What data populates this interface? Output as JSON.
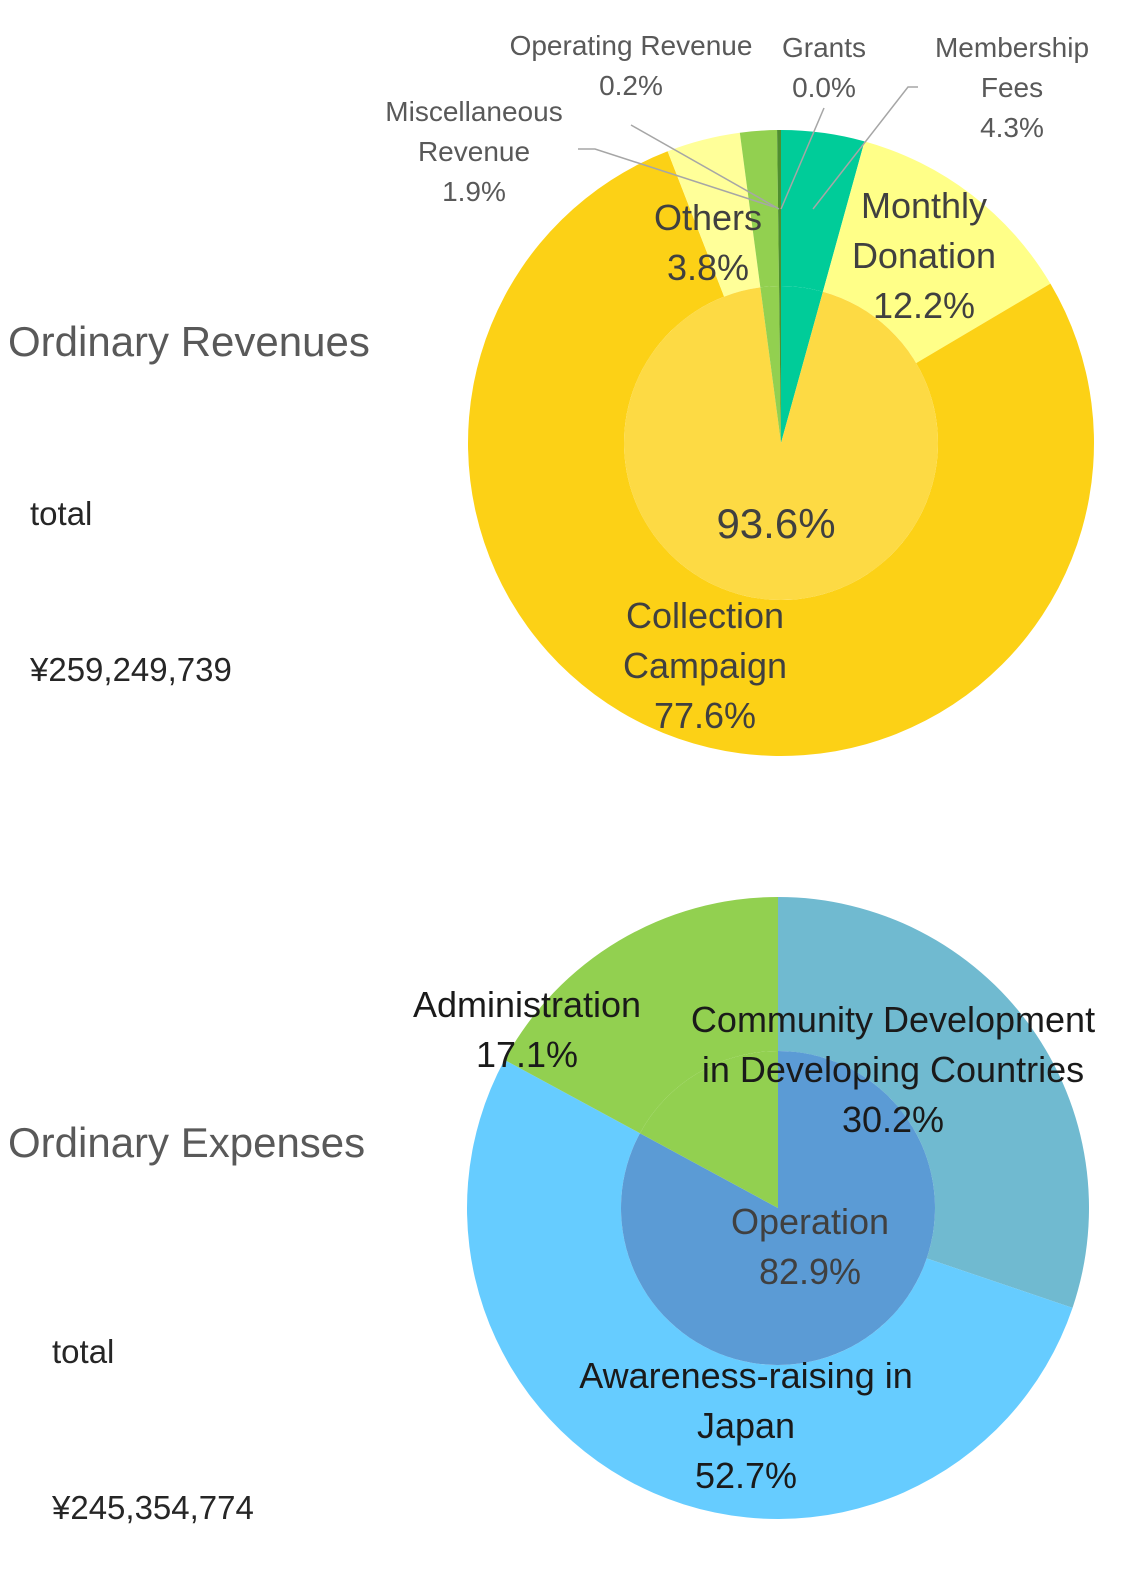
{
  "revenues": {
    "heading": "Ordinary Revenues",
    "total_label": "total",
    "total_value": "¥259,249,739"
  },
  "expenses": {
    "heading": "Ordinary Expenses",
    "total_label": "total",
    "total_value": "¥245,354,774"
  },
  "chart_data": [
    {
      "type": "pie",
      "variant": "donut-with-inner-pie",
      "outer_ring": [
        {
          "label": [
            "Membership",
            "Fees"
          ],
          "pct": "4.3%",
          "value": 4.3,
          "color": "#00CC99"
        },
        {
          "label": [
            "Monthly",
            "Donation"
          ],
          "pct": "12.2%",
          "value": 12.2,
          "color": "#FFFF88"
        },
        {
          "label": [
            "Collection",
            "Campaign"
          ],
          "pct": "77.6%",
          "value": 77.6,
          "color": "#FCD116"
        },
        {
          "label": [
            "Others"
          ],
          "pct": "3.8%",
          "value": 3.8,
          "color": "#FFFF99"
        },
        {
          "label": [
            "Miscellaneous",
            "Revenue"
          ],
          "pct": "1.9%",
          "value": 1.9,
          "color": "#92D050"
        },
        {
          "label": [
            "Operating Revenue"
          ],
          "pct": "0.2%",
          "value": 0.2,
          "color": "#4F8F2F"
        },
        {
          "label": [
            "Grants"
          ],
          "pct": "0.0%",
          "value": 0.0,
          "color": "#2E7D32"
        }
      ],
      "inner_pie": [
        {
          "label": [],
          "pct": "4.3%",
          "value": 4.3,
          "color": "#00CC99"
        },
        {
          "label": [],
          "pct": "93.6%",
          "value": 93.6,
          "color": "#FDDA44"
        },
        {
          "label": [],
          "pct": "1.9%",
          "value": 1.9,
          "color": "#92D050"
        },
        {
          "label": [],
          "pct": "0.2%",
          "value": 0.2,
          "color": "#4F8F2F"
        }
      ]
    },
    {
      "type": "pie",
      "variant": "donut-with-inner-pie",
      "outer_ring": [
        {
          "label": [
            "Community Development",
            "in Developing Countries"
          ],
          "pct": "30.2%",
          "value": 30.2,
          "color": "#70BAD0"
        },
        {
          "label": [
            "Awareness-raising in",
            "Japan"
          ],
          "pct": "52.7%",
          "value": 52.7,
          "color": "#66CCFF"
        },
        {
          "label": [
            "Administration"
          ],
          "pct": "17.1%",
          "value": 17.1,
          "color": "#92D050"
        }
      ],
      "inner_pie": [
        {
          "label": [
            "Operation"
          ],
          "pct": "82.9%",
          "value": 82.9,
          "color": "#5B9BD5"
        },
        {
          "label": [],
          "pct": "",
          "value": 17.1,
          "color": "#92D050"
        }
      ]
    }
  ]
}
